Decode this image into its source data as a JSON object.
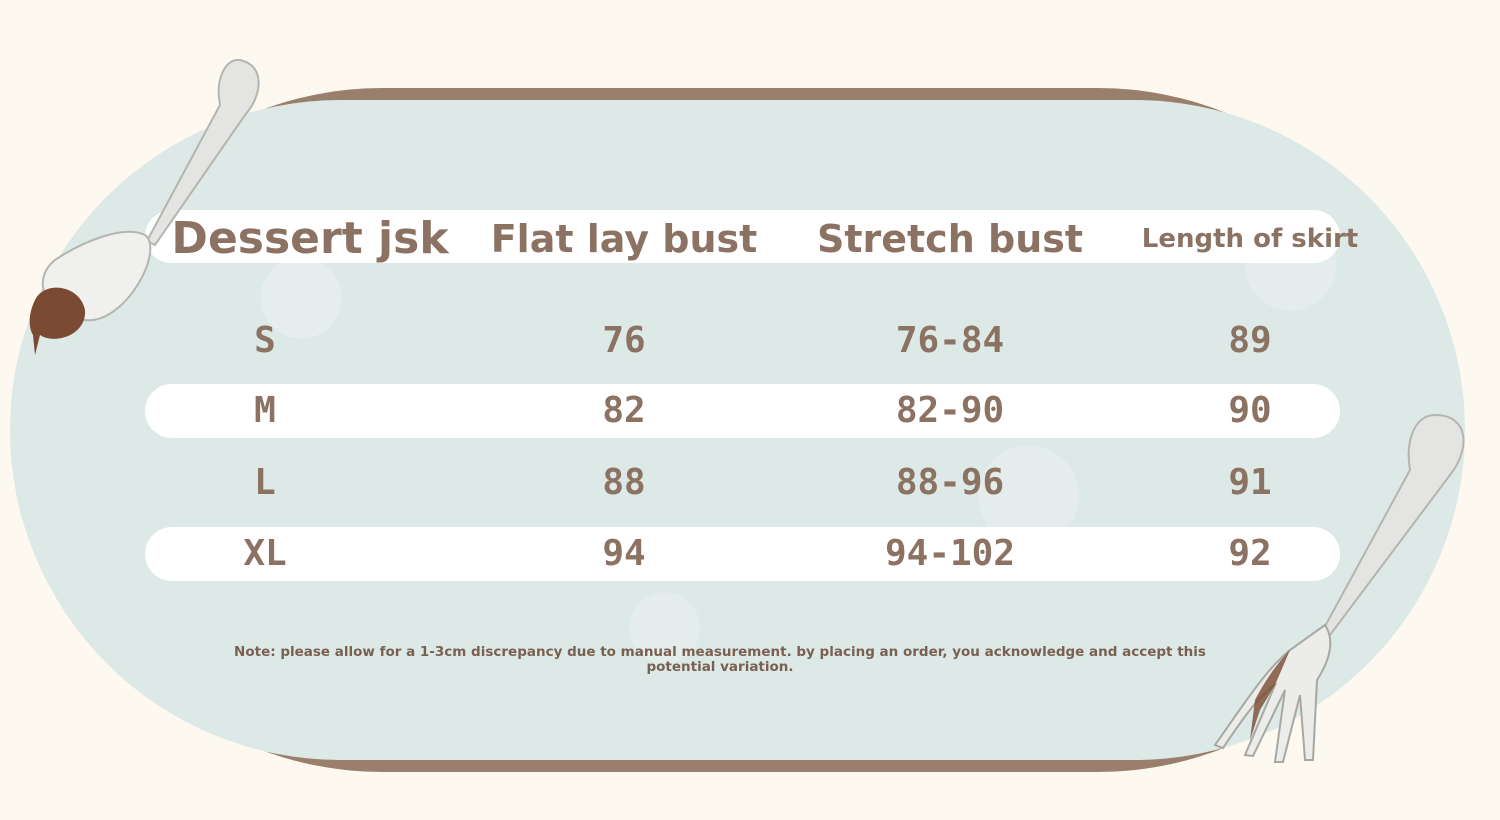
{
  "table": {
    "headers": [
      "Dessert jsk",
      "Flat lay bust",
      "Stretch bust",
      "Length of skirt"
    ],
    "rows": [
      [
        "S",
        "76",
        "76-84",
        "89"
      ],
      [
        "M",
        "82",
        "82-90",
        "90"
      ],
      [
        "L",
        "88",
        "88-96",
        "91"
      ],
      [
        "XL",
        "94",
        "94-102",
        "92"
      ]
    ]
  },
  "note": "Note: please allow for a 1-3cm discrepancy due to manual measurement. by placing an order, you acknowledge and accept this potential variation.",
  "colors": {
    "background": "#fdf8f0",
    "panel": "#dde9e7",
    "border": "#9a7f6d",
    "text": "#8b7263"
  },
  "decorations": [
    "spoon-icon",
    "fork-icon"
  ]
}
